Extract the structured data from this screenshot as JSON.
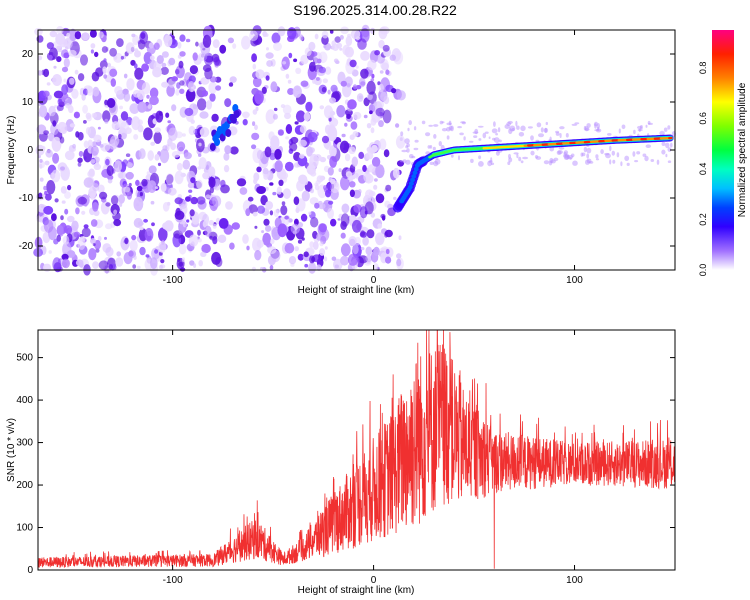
{
  "title": "S196.2025.314.00.28.R22",
  "chart_data": [
    {
      "type": "heatmap",
      "name": "spectrogram",
      "xlabel": "Height of straight line (km)",
      "ylabel": "Frequency (Hz)",
      "xlim": [
        -167,
        150
      ],
      "ylim": [
        -25,
        25
      ],
      "x_ticks": [
        -100,
        0,
        100
      ],
      "y_ticks": [
        -20,
        -10,
        0,
        10,
        20
      ],
      "colorbar": {
        "label": "Normalized spectral amplitude",
        "range": [
          0,
          0.95
        ],
        "ticks": [
          0,
          0.2,
          0.4,
          0.6,
          0.8
        ]
      },
      "signal_track": {
        "description_points": [
          {
            "x": -80,
            "y": 2
          },
          {
            "x": -72,
            "y": 5
          },
          {
            "x": -68,
            "y": 8
          },
          {
            "x": 12,
            "y": -12
          },
          {
            "x": 18,
            "y": -8
          },
          {
            "x": 22,
            "y": -3
          },
          {
            "x": 30,
            "y": -1
          },
          {
            "x": 40,
            "y": 0
          },
          {
            "x": 60,
            "y": 0.5
          },
          {
            "x": 80,
            "y": 1
          },
          {
            "x": 100,
            "y": 1.5
          },
          {
            "x": 120,
            "y": 2
          },
          {
            "x": 148,
            "y": 2.5
          }
        ]
      }
    },
    {
      "type": "line",
      "name": "snr",
      "xlabel": "Height of straight line (km)",
      "ylabel": "SNR (10 * v/v)",
      "xlim": [
        -167,
        150
      ],
      "ylim": [
        0,
        565
      ],
      "x_ticks": [
        -100,
        0,
        100
      ],
      "y_ticks": [
        0,
        100,
        200,
        300,
        400,
        500
      ],
      "color": "#f03030",
      "envelope": [
        {
          "x": -167,
          "base": 5,
          "amp": 25
        },
        {
          "x": -80,
          "base": 8,
          "amp": 30
        },
        {
          "x": -65,
          "base": 20,
          "amp": 80
        },
        {
          "x": -58,
          "base": 25,
          "amp": 100
        },
        {
          "x": -45,
          "base": 10,
          "amp": 30
        },
        {
          "x": -35,
          "base": 20,
          "amp": 60
        },
        {
          "x": -25,
          "base": 30,
          "amp": 120
        },
        {
          "x": -10,
          "base": 50,
          "amp": 200
        },
        {
          "x": 10,
          "base": 80,
          "amp": 300
        },
        {
          "x": 20,
          "base": 90,
          "amp": 420
        },
        {
          "x": 35,
          "base": 150,
          "amp": 400
        },
        {
          "x": 45,
          "base": 150,
          "amp": 280
        },
        {
          "x": 60,
          "base": 180,
          "amp": 150
        },
        {
          "x": 100,
          "base": 200,
          "amp": 100
        },
        {
          "x": 150,
          "base": 190,
          "amp": 120
        }
      ],
      "peaks": [
        {
          "x": 22,
          "y": 535
        },
        {
          "x": 32,
          "y": 530
        },
        {
          "x": 38,
          "y": 560
        },
        {
          "x": 43,
          "y": 470
        },
        {
          "x": 56,
          "y": 440
        },
        {
          "x": 15,
          "y": 390
        },
        {
          "x": 60,
          "y": 3
        }
      ]
    }
  ]
}
